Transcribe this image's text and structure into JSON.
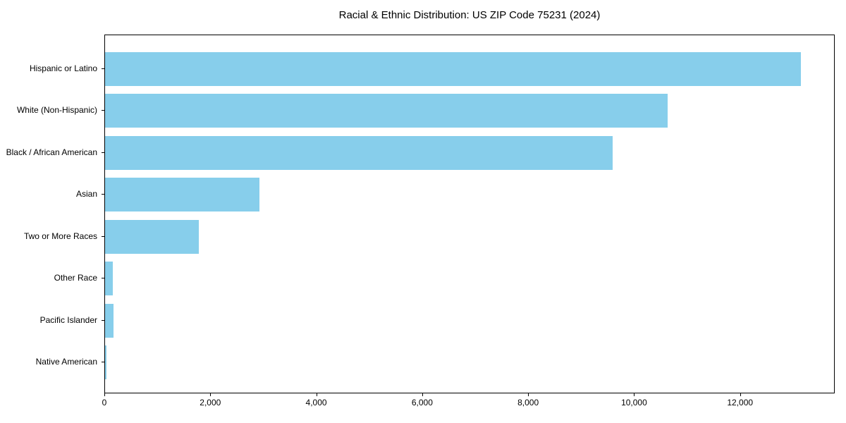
{
  "chart_data": {
    "type": "bar",
    "orientation": "horizontal",
    "title": "Racial & Ethnic Distribution: US ZIP Code 75231 (2024)",
    "categories": [
      "Hispanic or Latino",
      "White (Non-Hispanic)",
      "Black / African American",
      "Asian",
      "Two or More Races",
      "Other Race",
      "Pacific Islander",
      "Native American"
    ],
    "values": [
      13130,
      10620,
      9580,
      2920,
      1770,
      150,
      155,
      30
    ],
    "xlabel": "",
    "ylabel": "",
    "xlim": [
      0,
      13787
    ],
    "x_ticks": [
      0,
      2000,
      4000,
      6000,
      8000,
      10000,
      12000
    ],
    "x_tick_labels": [
      "0",
      "2,000",
      "4,000",
      "6,000",
      "8,000",
      "10,000",
      "12,000"
    ],
    "grid": false,
    "legend": "none",
    "bar_color": "#87CEEB",
    "background_color": "#FFFFFF",
    "axis_color": "#000000",
    "text_color": "#000000"
  }
}
